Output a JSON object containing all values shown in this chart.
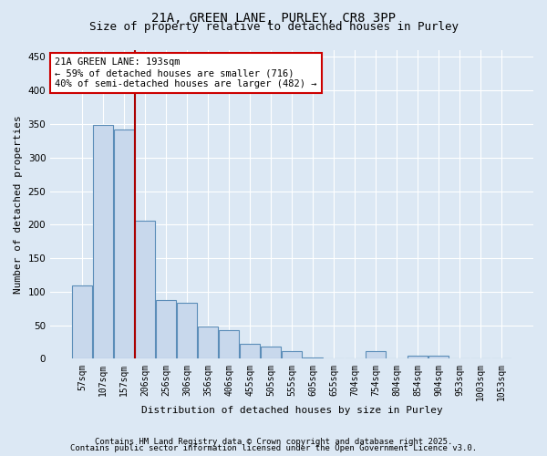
{
  "title_line1": "21A, GREEN LANE, PURLEY, CR8 3PP",
  "title_line2": "Size of property relative to detached houses in Purley",
  "xlabel": "Distribution of detached houses by size in Purley",
  "ylabel": "Number of detached properties",
  "bar_labels": [
    "57sqm",
    "107sqm",
    "157sqm",
    "206sqm",
    "256sqm",
    "306sqm",
    "356sqm",
    "406sqm",
    "455sqm",
    "505sqm",
    "555sqm",
    "605sqm",
    "655sqm",
    "704sqm",
    "754sqm",
    "804sqm",
    "854sqm",
    "904sqm",
    "953sqm",
    "1003sqm",
    "1053sqm"
  ],
  "bar_values": [
    110,
    348,
    342,
    206,
    87,
    84,
    48,
    43,
    23,
    18,
    11,
    2,
    0,
    0,
    11,
    0,
    5,
    5,
    0,
    0,
    0
  ],
  "bar_color": "#c8d8ec",
  "bar_edge_color": "#5b8db8",
  "vline_color": "#aa0000",
  "vline_x": 2.5,
  "annotation_text": "21A GREEN LANE: 193sqm\n← 59% of detached houses are smaller (716)\n40% of semi-detached houses are larger (482) →",
  "annotation_box_color": "#ffffff",
  "annotation_box_edge": "#cc0000",
  "ylim": [
    0,
    460
  ],
  "yticks": [
    0,
    50,
    100,
    150,
    200,
    250,
    300,
    350,
    400,
    450
  ],
  "bg_color": "#dce8f4",
  "plot_bg_color": "#dce8f4",
  "grid_color": "#ffffff",
  "footer_line1": "Contains HM Land Registry data © Crown copyright and database right 2025.",
  "footer_line2": "Contains public sector information licensed under the Open Government Licence v3.0.",
  "title_fontsize": 10,
  "subtitle_fontsize": 9,
  "annotation_fontsize": 7.5,
  "footer_fontsize": 6.5,
  "xlabel_fontsize": 8,
  "ylabel_fontsize": 8,
  "tick_fontsize": 7,
  "ytick_fontsize": 7.5
}
